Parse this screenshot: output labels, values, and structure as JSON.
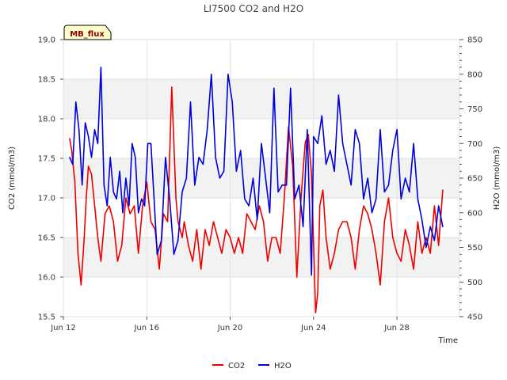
{
  "chart_data": {
    "type": "line",
    "title": "LI7500 CO2 and H2O",
    "site_label": "MB_flux",
    "xlabel": "Time",
    "ylabel_left": "CO2 (mmol/m3)",
    "ylabel_right": "H2O (mmol/m3)",
    "x_range_days": [
      12,
      31
    ],
    "x_ticks": [
      {
        "day": 12,
        "label": "Jun 12"
      },
      {
        "day": 16,
        "label": "Jun 16"
      },
      {
        "day": 20,
        "label": "Jun 20"
      },
      {
        "day": 24,
        "label": "Jun 24"
      },
      {
        "day": 28,
        "label": "Jun 28"
      }
    ],
    "ylim_left": [
      15.5,
      19.0
    ],
    "left_ticks": [
      "15.5",
      "16.0",
      "16.5",
      "17.0",
      "17.5",
      "18.0",
      "18.5",
      "19.0"
    ],
    "ylim_right": [
      450,
      850
    ],
    "right_ticks": [
      "450",
      "500",
      "550",
      "600",
      "650",
      "700",
      "750",
      "800",
      "850"
    ],
    "grid": true,
    "legend": "bottom-center",
    "series": [
      {
        "name": "CO2",
        "axis": "left",
        "color": "#ee0000",
        "x": [
          12.3,
          12.4,
          12.55,
          12.7,
          12.85,
          13.0,
          13.1,
          13.2,
          13.35,
          13.5,
          13.65,
          13.8,
          14.0,
          14.2,
          14.4,
          14.6,
          14.8,
          15.0,
          15.2,
          15.4,
          15.6,
          15.8,
          16.0,
          16.2,
          16.4,
          16.6,
          16.8,
          17.0,
          17.2,
          17.4,
          17.5,
          17.6,
          17.7,
          17.8,
          18.0,
          18.2,
          18.4,
          18.6,
          18.8,
          19.0,
          19.2,
          19.4,
          19.6,
          19.8,
          20.0,
          20.2,
          20.4,
          20.6,
          20.8,
          21.0,
          21.2,
          21.4,
          21.6,
          21.8,
          22.0,
          22.2,
          22.4,
          22.6,
          22.8,
          23.0,
          23.2,
          23.4,
          23.6,
          23.75,
          23.9,
          24.1,
          24.2,
          24.3,
          24.45,
          24.6,
          24.8,
          25.0,
          25.2,
          25.4,
          25.6,
          25.8,
          26.0,
          26.2,
          26.4,
          26.6,
          26.8,
          27.0,
          27.2,
          27.4,
          27.6,
          27.8,
          28.0,
          28.2,
          28.4,
          28.6,
          28.8,
          29.0,
          29.2,
          29.4,
          29.6,
          29.8,
          30.0,
          30.2
        ],
        "values": [
          17.75,
          17.6,
          17.2,
          16.3,
          15.9,
          16.5,
          17.0,
          17.4,
          17.3,
          16.9,
          16.5,
          16.2,
          16.8,
          16.9,
          16.7,
          16.2,
          16.4,
          17.0,
          16.8,
          16.9,
          16.3,
          16.9,
          17.2,
          16.7,
          16.6,
          16.1,
          16.8,
          16.7,
          18.4,
          17.0,
          16.7,
          16.6,
          16.5,
          16.7,
          16.4,
          16.2,
          16.6,
          16.1,
          16.6,
          16.4,
          16.7,
          16.5,
          16.3,
          16.6,
          16.5,
          16.3,
          16.5,
          16.3,
          16.8,
          16.7,
          16.6,
          16.9,
          16.7,
          16.2,
          16.5,
          16.5,
          16.3,
          17.0,
          17.9,
          17.4,
          16.0,
          17.0,
          17.7,
          17.8,
          17.3,
          15.55,
          15.8,
          16.9,
          17.1,
          16.5,
          16.1,
          16.3,
          16.6,
          16.7,
          16.7,
          16.5,
          16.1,
          16.6,
          16.9,
          16.8,
          16.6,
          16.3,
          15.9,
          16.7,
          17.0,
          16.5,
          16.3,
          16.2,
          16.6,
          16.4,
          16.1,
          16.7,
          16.3,
          16.5,
          16.3,
          16.9,
          16.4,
          17.1
        ]
      },
      {
        "name": "H2O",
        "axis": "right",
        "color": "#0000dd",
        "x": [
          12.3,
          12.45,
          12.6,
          12.75,
          12.9,
          13.05,
          13.2,
          13.35,
          13.5,
          13.65,
          13.8,
          13.95,
          14.1,
          14.25,
          14.4,
          14.55,
          14.7,
          14.85,
          15.0,
          15.15,
          15.3,
          15.45,
          15.6,
          15.75,
          15.9,
          16.05,
          16.2,
          16.35,
          16.5,
          16.7,
          16.9,
          17.1,
          17.3,
          17.5,
          17.7,
          17.9,
          18.1,
          18.3,
          18.5,
          18.7,
          18.9,
          19.1,
          19.3,
          19.5,
          19.7,
          19.9,
          20.1,
          20.3,
          20.5,
          20.7,
          20.9,
          21.1,
          21.3,
          21.5,
          21.7,
          21.9,
          22.1,
          22.3,
          22.5,
          22.7,
          22.9,
          23.1,
          23.3,
          23.5,
          23.7,
          23.9,
          24.0,
          24.2,
          24.4,
          24.6,
          24.8,
          25.0,
          25.2,
          25.4,
          25.6,
          25.8,
          26.0,
          26.2,
          26.4,
          26.6,
          26.8,
          27.0,
          27.2,
          27.4,
          27.6,
          27.8,
          28.0,
          28.2,
          28.4,
          28.6,
          28.8,
          29.0,
          29.2,
          29.4,
          29.6,
          29.8,
          30.0,
          30.2
        ],
        "values": [
          680,
          670,
          760,
          720,
          640,
          730,
          710,
          680,
          720,
          700,
          810,
          640,
          610,
          680,
          630,
          620,
          660,
          600,
          650,
          610,
          700,
          680,
          600,
          620,
          610,
          700,
          700,
          620,
          540,
          560,
          680,
          620,
          540,
          560,
          630,
          650,
          760,
          640,
          680,
          670,
          720,
          800,
          680,
          650,
          660,
          800,
          760,
          660,
          690,
          620,
          610,
          650,
          590,
          700,
          650,
          600,
          780,
          630,
          640,
          640,
          780,
          620,
          640,
          580,
          720,
          510,
          710,
          700,
          740,
          670,
          690,
          660,
          770,
          700,
          670,
          640,
          720,
          700,
          620,
          650,
          600,
          620,
          720,
          630,
          640,
          690,
          720,
          620,
          650,
          630,
          700,
          620,
          590,
          550,
          580,
          560,
          610,
          580
        ]
      }
    ]
  }
}
